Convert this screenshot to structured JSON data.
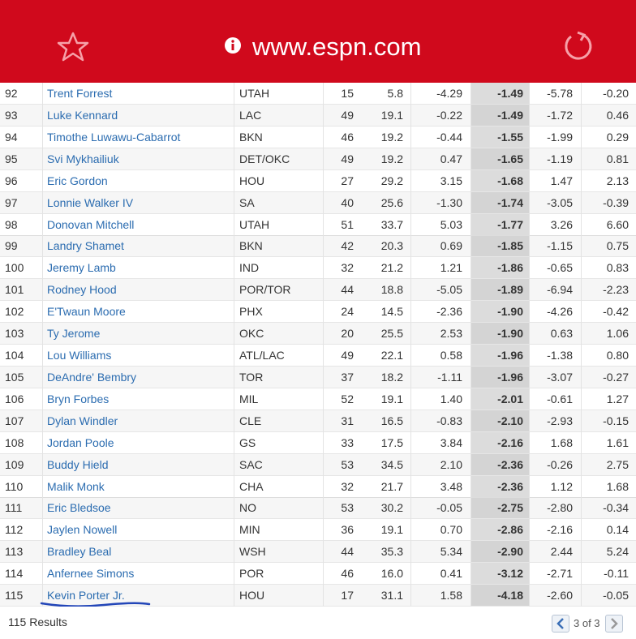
{
  "header": {
    "url": "www.espn.com"
  },
  "table": {
    "rows": [
      [
        "92",
        "Trent Forrest",
        "UTAH",
        "15",
        "5.8",
        "-4.29",
        "-1.49",
        "-5.78",
        "-0.20"
      ],
      [
        "93",
        "Luke Kennard",
        "LAC",
        "49",
        "19.1",
        "-0.22",
        "-1.49",
        "-1.72",
        "0.46"
      ],
      [
        "94",
        "Timothe Luwawu-Cabarrot",
        "BKN",
        "46",
        "19.2",
        "-0.44",
        "-1.55",
        "-1.99",
        "0.29"
      ],
      [
        "95",
        "Svi Mykhailiuk",
        "DET/OKC",
        "49",
        "19.2",
        "0.47",
        "-1.65",
        "-1.19",
        "0.81"
      ],
      [
        "96",
        "Eric Gordon",
        "HOU",
        "27",
        "29.2",
        "3.15",
        "-1.68",
        "1.47",
        "2.13"
      ],
      [
        "97",
        "Lonnie Walker IV",
        "SA",
        "40",
        "25.6",
        "-1.30",
        "-1.74",
        "-3.05",
        "-0.39"
      ],
      [
        "98",
        "Donovan Mitchell",
        "UTAH",
        "51",
        "33.7",
        "5.03",
        "-1.77",
        "3.26",
        "6.60"
      ],
      [
        "99",
        "Landry Shamet",
        "BKN",
        "42",
        "20.3",
        "0.69",
        "-1.85",
        "-1.15",
        "0.75"
      ],
      [
        "100",
        "Jeremy Lamb",
        "IND",
        "32",
        "21.2",
        "1.21",
        "-1.86",
        "-0.65",
        "0.83"
      ],
      [
        "101",
        "Rodney Hood",
        "POR/TOR",
        "44",
        "18.8",
        "-5.05",
        "-1.89",
        "-6.94",
        "-2.23"
      ],
      [
        "102",
        "E'Twaun Moore",
        "PHX",
        "24",
        "14.5",
        "-2.36",
        "-1.90",
        "-4.26",
        "-0.42"
      ],
      [
        "103",
        "Ty Jerome",
        "OKC",
        "20",
        "25.5",
        "2.53",
        "-1.90",
        "0.63",
        "1.06"
      ],
      [
        "104",
        "Lou Williams",
        "ATL/LAC",
        "49",
        "22.1",
        "0.58",
        "-1.96",
        "-1.38",
        "0.80"
      ],
      [
        "105",
        "DeAndre' Bembry",
        "TOR",
        "37",
        "18.2",
        "-1.11",
        "-1.96",
        "-3.07",
        "-0.27"
      ],
      [
        "106",
        "Bryn Forbes",
        "MIL",
        "52",
        "19.1",
        "1.40",
        "-2.01",
        "-0.61",
        "1.27"
      ],
      [
        "107",
        "Dylan Windler",
        "CLE",
        "31",
        "16.5",
        "-0.83",
        "-2.10",
        "-2.93",
        "-0.15"
      ],
      [
        "108",
        "Jordan Poole",
        "GS",
        "33",
        "17.5",
        "3.84",
        "-2.16",
        "1.68",
        "1.61"
      ],
      [
        "109",
        "Buddy Hield",
        "SAC",
        "53",
        "34.5",
        "2.10",
        "-2.36",
        "-0.26",
        "2.75"
      ],
      [
        "110",
        "Malik Monk",
        "CHA",
        "32",
        "21.7",
        "3.48",
        "-2.36",
        "1.12",
        "1.68"
      ],
      [
        "111",
        "Eric Bledsoe",
        "NO",
        "53",
        "30.2",
        "-0.05",
        "-2.75",
        "-2.80",
        "-0.34"
      ],
      [
        "112",
        "Jaylen Nowell",
        "MIN",
        "36",
        "19.1",
        "0.70",
        "-2.86",
        "-2.16",
        "0.14"
      ],
      [
        "113",
        "Bradley Beal",
        "WSH",
        "44",
        "35.3",
        "5.34",
        "-2.90",
        "2.44",
        "5.24"
      ],
      [
        "114",
        "Anfernee Simons",
        "POR",
        "46",
        "16.0",
        "0.41",
        "-3.12",
        "-2.71",
        "-0.11"
      ],
      [
        "115",
        "Kevin Porter Jr.",
        "HOU",
        "17",
        "31.1",
        "1.58",
        "-4.18",
        "-2.60",
        "-0.05"
      ]
    ]
  },
  "footer": {
    "results": "115 Results",
    "page": "3 of 3"
  }
}
